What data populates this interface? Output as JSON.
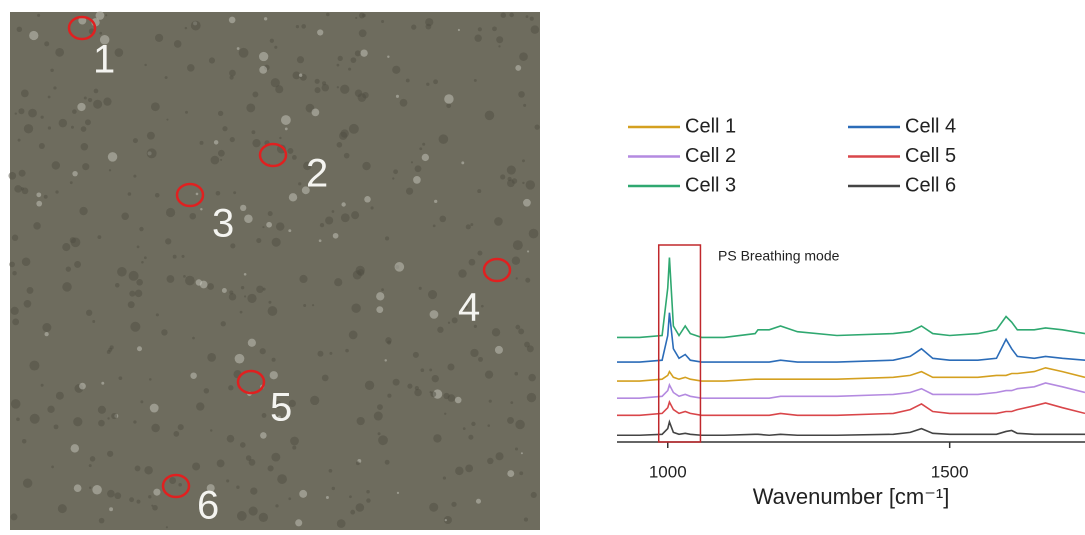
{
  "image": {
    "labels": [
      "1",
      "2",
      "3",
      "4",
      "5",
      "6"
    ]
  },
  "chart_data": {
    "type": "line",
    "x": [
      910,
      950,
      990,
      1000,
      1003,
      1010,
      1020,
      1031,
      1040,
      1060,
      1100,
      1155,
      1160,
      1180,
      1200,
      1230,
      1300,
      1400,
      1430,
      1450,
      1470,
      1500,
      1550,
      1583,
      1600,
      1610,
      1620,
      1650,
      1670,
      1700,
      1740
    ],
    "series": [
      {
        "name": "Cell 1",
        "color": "#d4a020",
        "values": [
          31,
          31,
          32,
          34,
          36,
          33,
          32,
          33,
          32,
          31,
          31,
          32,
          32,
          32,
          32,
          32,
          32,
          33,
          34,
          36,
          33,
          33,
          33,
          34,
          34,
          35,
          35,
          36,
          38,
          36,
          33
        ]
      },
      {
        "name": "Cell 2",
        "color": "#b48ae0",
        "values": [
          22,
          22,
          23,
          26,
          29,
          25,
          23,
          24,
          23,
          22,
          22,
          22,
          22,
          22,
          23,
          23,
          23,
          24,
          25,
          27,
          24,
          24,
          24,
          25,
          26,
          26,
          27,
          28,
          30,
          28,
          25
        ]
      },
      {
        "name": "Cell 3",
        "color": "#2fa870",
        "values": [
          54,
          54,
          55,
          80,
          96,
          60,
          55,
          60,
          56,
          54,
          54,
          56,
          58,
          58,
          60,
          57,
          55,
          56,
          57,
          60,
          56,
          55,
          56,
          58,
          65,
          62,
          58,
          58,
          59,
          58,
          56
        ]
      },
      {
        "name": "Cell 4",
        "color": "#2b6cb8",
        "values": [
          41,
          41,
          42,
          55,
          67,
          48,
          43,
          45,
          42,
          41,
          41,
          41,
          41,
          41,
          42,
          41,
          41,
          42,
          44,
          48,
          43,
          42,
          42,
          43,
          53,
          48,
          44,
          43,
          44,
          43,
          42
        ]
      },
      {
        "name": "Cell 5",
        "color": "#d9464a",
        "values": [
          13,
          13,
          14,
          17,
          20,
          16,
          14,
          15,
          14,
          13,
          13,
          13,
          13,
          13,
          14,
          13,
          13,
          14,
          16,
          19,
          15,
          14,
          14,
          14,
          15,
          15,
          16,
          18,
          19.5,
          17,
          14
        ]
      },
      {
        "name": "Cell 6",
        "color": "#444444",
        "values": [
          2.5,
          2.5,
          3,
          6,
          9.5,
          4,
          3,
          3.5,
          3,
          2.5,
          2.5,
          3,
          3,
          2.5,
          3,
          2.5,
          2.5,
          3,
          4,
          6,
          3.5,
          3,
          3,
          3,
          4.5,
          5,
          3.5,
          3,
          3,
          3,
          3
        ]
      }
    ],
    "xlim": [
      910,
      1740
    ],
    "xticks": [
      1000,
      1500
    ],
    "ylim": [
      0,
      100
    ],
    "xlabel": "Wavenumber [cm⁻¹]",
    "annotation": {
      "text": "PS Breathing mode",
      "color": "#c0282c",
      "xrange": [
        984,
        1058
      ]
    }
  }
}
